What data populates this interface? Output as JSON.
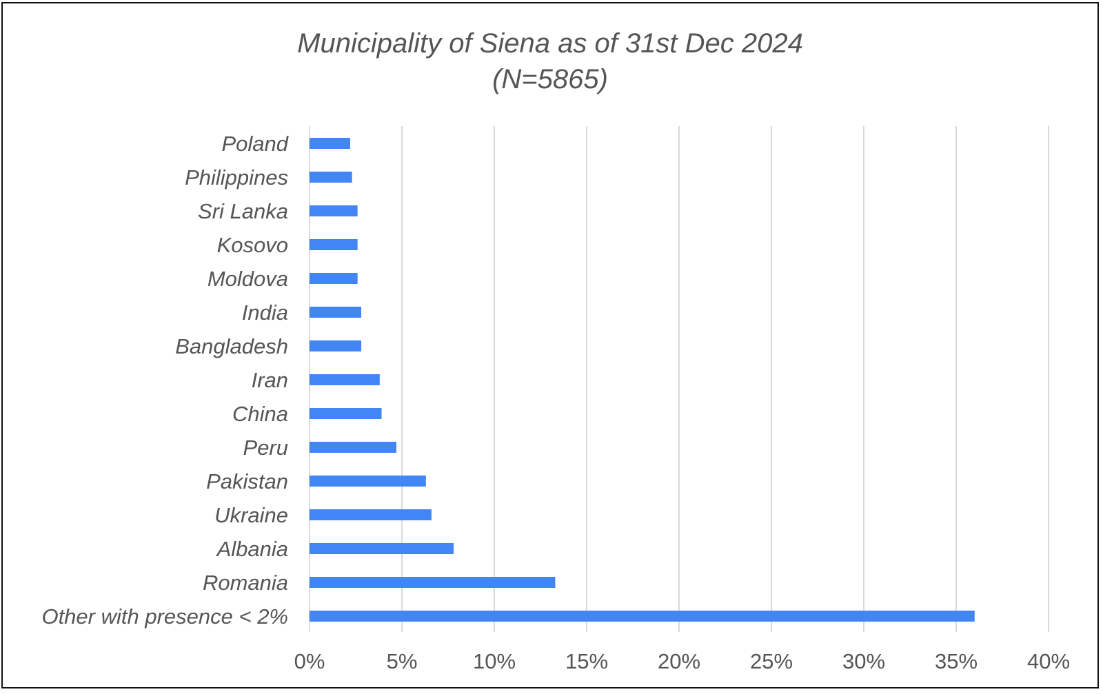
{
  "chart_data": {
    "type": "bar",
    "orientation": "horizontal",
    "title": "Municipality of Siena as of 31st Dec 2024",
    "subtitle": "(N=5865)",
    "categories": [
      "Poland",
      "Philippines",
      "Sri Lanka",
      "Kosovo",
      "Moldova",
      "India",
      "Bangladesh",
      "Iran",
      "China",
      "Peru",
      "Pakistan",
      "Ukraine",
      "Albania",
      "Romania",
      "Other with presence < 2%"
    ],
    "values": [
      2.2,
      2.3,
      2.6,
      2.6,
      2.6,
      2.8,
      2.8,
      3.8,
      3.9,
      4.7,
      6.3,
      6.6,
      7.8,
      13.3,
      36.0
    ],
    "value_unit": "%",
    "xlim": [
      0,
      40
    ],
    "xticks": [
      "0%",
      "5%",
      "10%",
      "15%",
      "20%",
      "25%",
      "30%",
      "35%",
      "40%"
    ],
    "xtick_values": [
      0,
      5,
      10,
      15,
      20,
      25,
      30,
      35,
      40
    ],
    "grid": "vertical",
    "legend": "none",
    "colors": {
      "bar": "#4285f4",
      "grid": "#d9d9d9",
      "text": "#555555",
      "border": "#111111"
    }
  }
}
